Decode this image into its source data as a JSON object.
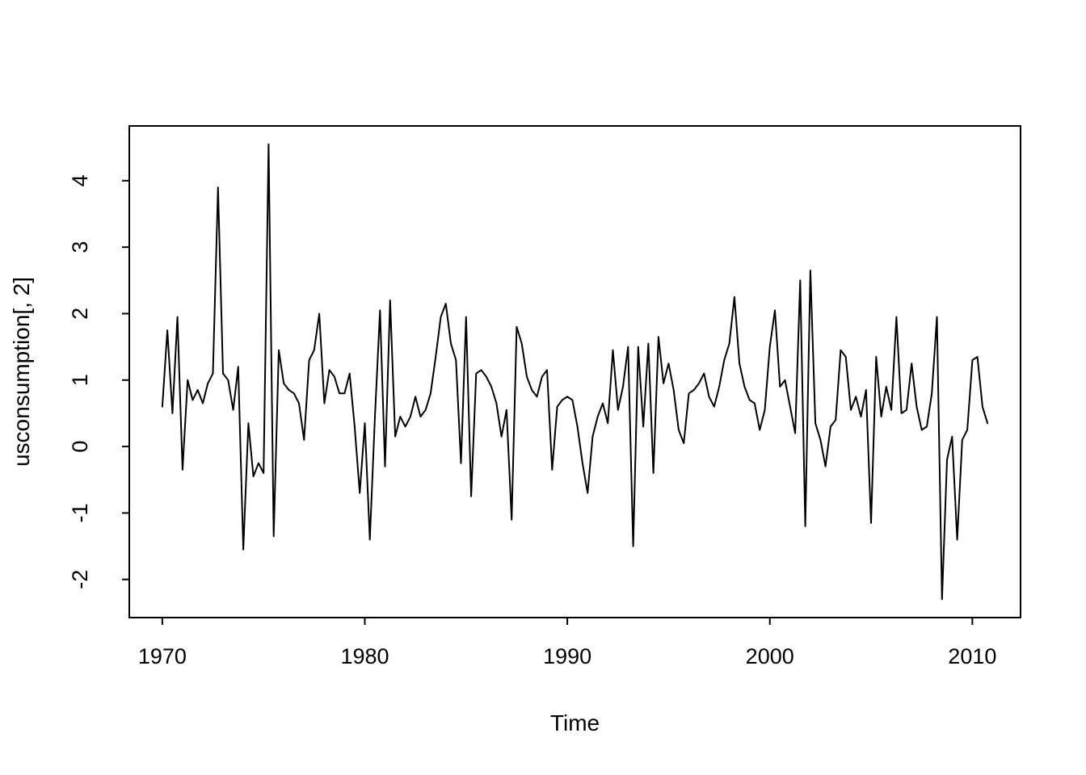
{
  "figure": {
    "background": "#ffffff"
  },
  "chart_data": {
    "type": "line",
    "title": "",
    "xlabel": "Time",
    "ylabel": "usconsumption[, 2]",
    "series_name": "usconsumption[, 2]",
    "line_color": "#000000",
    "background": "#ffffff",
    "grid": false,
    "legend": "none",
    "x_start": 1970,
    "x_end": 2010.75,
    "frequency": 4,
    "x_ticks": [
      1970,
      1980,
      1990,
      2000,
      2010
    ],
    "y_ticks": [
      -2,
      -1,
      0,
      1,
      2,
      3,
      4
    ],
    "xlim": [
      1968.37,
      2012.38
    ],
    "ylim": [
      -2.574,
      4.824
    ],
    "values": [
      0.6,
      1.75,
      0.5,
      1.95,
      -0.35,
      1.0,
      0.7,
      0.85,
      0.65,
      0.95,
      1.1,
      3.9,
      1.1,
      1.0,
      0.55,
      1.2,
      -1.55,
      0.35,
      -0.45,
      -0.25,
      -0.4,
      4.55,
      -1.35,
      1.45,
      0.95,
      0.85,
      0.8,
      0.65,
      0.1,
      1.3,
      1.45,
      2.0,
      0.65,
      1.15,
      1.05,
      0.8,
      0.8,
      1.1,
      0.3,
      -0.7,
      0.35,
      -1.4,
      0.45,
      2.05,
      -0.3,
      2.2,
      0.15,
      0.45,
      0.3,
      0.45,
      0.75,
      0.45,
      0.55,
      0.8,
      1.35,
      1.95,
      2.15,
      1.55,
      1.3,
      -0.25,
      1.95,
      -0.75,
      1.1,
      1.15,
      1.05,
      0.9,
      0.65,
      0.15,
      0.55,
      -1.1,
      1.8,
      1.55,
      1.05,
      0.85,
      0.75,
      1.05,
      1.15,
      -0.35,
      0.6,
      0.7,
      0.75,
      0.7,
      0.3,
      -0.25,
      -0.7,
      0.15,
      0.45,
      0.65,
      0.35,
      1.45,
      0.55,
      0.9,
      1.5,
      -1.5,
      1.5,
      0.3,
      1.55,
      -0.4,
      1.65,
      0.95,
      1.25,
      0.85,
      0.25,
      0.05,
      0.8,
      0.85,
      0.95,
      1.1,
      0.75,
      0.6,
      0.9,
      1.3,
      1.55,
      2.25,
      1.25,
      0.9,
      0.7,
      0.65,
      0.25,
      0.55,
      1.5,
      2.05,
      0.9,
      1.0,
      0.6,
      0.2,
      2.5,
      -1.2,
      2.65,
      0.35,
      0.1,
      -0.3,
      0.3,
      0.4,
      1.45,
      1.35,
      0.55,
      0.75,
      0.45,
      0.85,
      -1.15,
      1.35,
      0.45,
      0.9,
      0.55,
      1.95,
      0.5,
      0.55,
      1.25,
      0.6,
      0.25,
      0.3,
      0.8,
      1.95,
      -2.3,
      -0.2,
      0.15,
      -1.4,
      0.1,
      0.25,
      1.3,
      1.35,
      0.6,
      0.35
    ]
  }
}
